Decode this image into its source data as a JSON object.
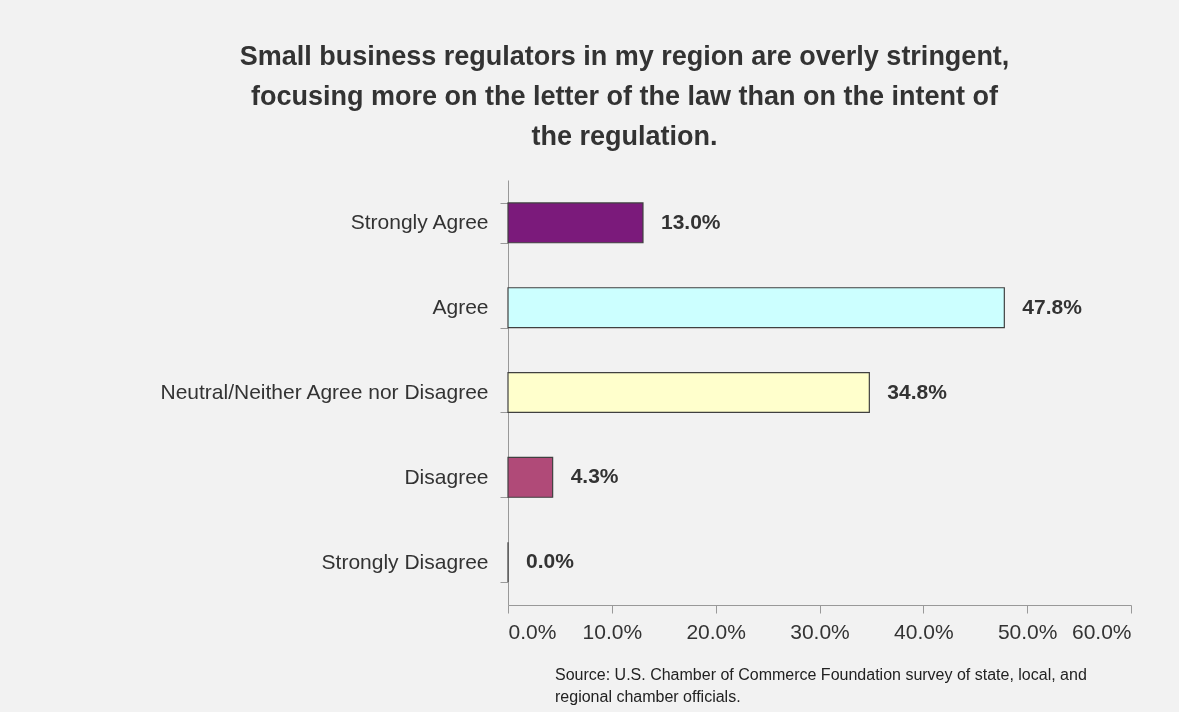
{
  "chart_data": {
    "type": "bar",
    "orientation": "horizontal",
    "title": [
      "Small business regulators in my region are overly stringent,",
      "focusing more on the letter of the law than on the intent of",
      "the regulation."
    ],
    "categories": [
      "Strongly Agree",
      "Agree",
      "Neutral/Neither Agree nor Disagree",
      "Disagree",
      "Strongly Disagree"
    ],
    "values": [
      13.0,
      47.8,
      34.8,
      4.3,
      0.0
    ],
    "colors": [
      "#7b1a7b",
      "#ccffff",
      "#ffffcc",
      "#b04a78",
      "#404040"
    ],
    "value_labels": [
      "13.0%",
      "47.8%",
      "34.8%",
      "4.3%",
      "0.0%"
    ],
    "xlim": [
      0,
      60
    ],
    "xticks": [
      {
        "value": 0,
        "label": "0.0%"
      },
      {
        "value": 10,
        "label": "10.0%"
      },
      {
        "value": 20,
        "label": "20.0%"
      },
      {
        "value": 30,
        "label": "30.0%"
      },
      {
        "value": 40,
        "label": "40.0%"
      },
      {
        "value": 50,
        "label": "50.0%"
      },
      {
        "value": 60,
        "label": "60.0%"
      }
    ],
    "grid": false,
    "legend": false,
    "annotations": [
      "Source: U.S. Chamber of Commerce Foundation survey of state, local, and regional chamber officials."
    ]
  }
}
